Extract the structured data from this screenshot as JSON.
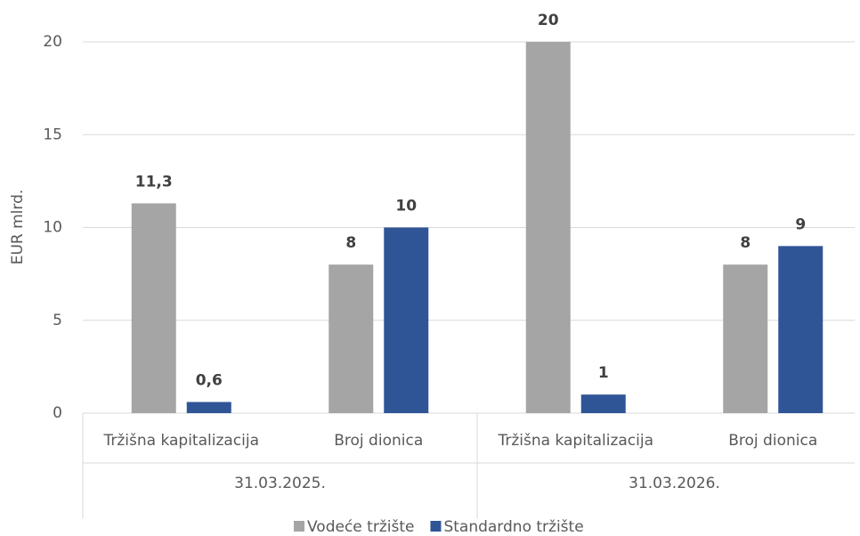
{
  "chart_data": {
    "type": "bar",
    "y_label": "EUR mlrd.",
    "categories": [
      "Tržišna kapitalizacija",
      "Broj dionica",
      "Tržišna kapitalizacija",
      "Broj dionica"
    ],
    "category_groups": [
      "31.03.2025.",
      "31.03.2026."
    ],
    "series": [
      {
        "name": "Vodeće tržište",
        "color": "#a5a5a5",
        "values": [
          11.3,
          8,
          20,
          8
        ],
        "value_labels": [
          "11,3",
          "8",
          "20",
          "8"
        ]
      },
      {
        "name": "Standardno tržište",
        "color": "#2f5597",
        "values": [
          0.6,
          10,
          1,
          9
        ],
        "value_labels": [
          "0,6",
          "10",
          "1",
          "9"
        ]
      }
    ],
    "ylim": [
      0,
      20
    ],
    "yticks": [
      0,
      5,
      10,
      15,
      20
    ],
    "grid": true,
    "legend": "bottom"
  }
}
